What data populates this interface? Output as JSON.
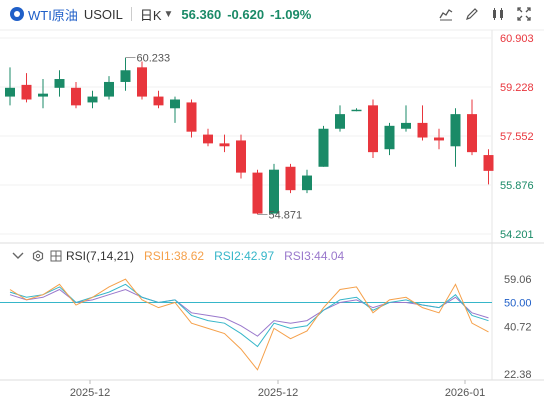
{
  "header": {
    "name": "WTI原油",
    "code": "USOIL",
    "period": "日K",
    "price": "56.360",
    "change": "-0.620",
    "change_pct": "-1.09%",
    "tools": [
      "indicator-icon",
      "draw-icon",
      "compare-icon",
      "fullscreen-icon"
    ]
  },
  "main_axis": {
    "labels": [
      "60.903",
      "59.228",
      "57.552",
      "55.876",
      "54.201"
    ],
    "values": [
      60.903,
      59.228,
      57.552,
      55.876,
      54.201
    ]
  },
  "annotations": {
    "high": "60.233",
    "low": "54.871"
  },
  "rsi": {
    "name": "RSI(7,14,21)",
    "rsi1": "RSI1:38.62",
    "rsi2": "RSI2:42.97",
    "rsi3": "RSI3:44.04",
    "axis": [
      "59.06",
      "50.00",
      "40.72",
      "22.38"
    ]
  },
  "x_axis": {
    "labels": [
      "2025-12",
      "2025-12",
      "2026-01"
    ]
  },
  "colors": {
    "up": "#1a8a67",
    "down": "#e8363d",
    "rsi1": "#f5a04a",
    "rsi2": "#36b6c9",
    "rsi3": "#9a78cc",
    "level": "#36b6c9"
  },
  "chart_data": {
    "type": "candlestick",
    "candles": [
      {
        "o": 58.9,
        "h": 59.9,
        "l": 58.6,
        "c": 59.2
      },
      {
        "o": 59.3,
        "h": 59.7,
        "l": 58.7,
        "c": 58.8
      },
      {
        "o": 58.9,
        "h": 59.5,
        "l": 58.5,
        "c": 59.0
      },
      {
        "o": 59.2,
        "h": 59.8,
        "l": 58.9,
        "c": 59.5
      },
      {
        "o": 59.2,
        "h": 59.4,
        "l": 58.5,
        "c": 58.6
      },
      {
        "o": 58.7,
        "h": 59.1,
        "l": 58.5,
        "c": 58.9
      },
      {
        "o": 58.9,
        "h": 59.6,
        "l": 58.8,
        "c": 59.4
      },
      {
        "o": 59.4,
        "h": 60.233,
        "l": 59.1,
        "c": 59.8
      },
      {
        "o": 59.9,
        "h": 60.1,
        "l": 58.8,
        "c": 58.9
      },
      {
        "o": 58.9,
        "h": 59.1,
        "l": 58.5,
        "c": 58.6
      },
      {
        "o": 58.5,
        "h": 58.9,
        "l": 58.0,
        "c": 58.8
      },
      {
        "o": 58.7,
        "h": 58.8,
        "l": 57.5,
        "c": 57.7
      },
      {
        "o": 57.6,
        "h": 57.8,
        "l": 57.2,
        "c": 57.3
      },
      {
        "o": 57.3,
        "h": 57.6,
        "l": 57.0,
        "c": 57.2
      },
      {
        "o": 57.4,
        "h": 57.6,
        "l": 56.1,
        "c": 56.3
      },
      {
        "o": 56.3,
        "h": 56.4,
        "l": 54.871,
        "c": 54.9
      },
      {
        "o": 54.9,
        "h": 56.6,
        "l": 54.9,
        "c": 56.4
      },
      {
        "o": 56.5,
        "h": 56.6,
        "l": 55.6,
        "c": 55.7
      },
      {
        "o": 55.7,
        "h": 56.4,
        "l": 55.6,
        "c": 56.2
      },
      {
        "o": 56.5,
        "h": 57.9,
        "l": 56.5,
        "c": 57.8
      },
      {
        "o": 57.8,
        "h": 58.6,
        "l": 57.7,
        "c": 58.3
      },
      {
        "o": 58.4,
        "h": 58.5,
        "l": 58.4,
        "c": 58.45
      },
      {
        "o": 58.6,
        "h": 58.8,
        "l": 56.8,
        "c": 57.0
      },
      {
        "o": 57.1,
        "h": 58.0,
        "l": 56.9,
        "c": 57.9
      },
      {
        "o": 57.8,
        "h": 58.6,
        "l": 57.7,
        "c": 58.0
      },
      {
        "o": 58.0,
        "h": 58.6,
        "l": 57.4,
        "c": 57.5
      },
      {
        "o": 57.5,
        "h": 57.8,
        "l": 57.1,
        "c": 57.4
      },
      {
        "o": 57.2,
        "h": 58.5,
        "l": 56.5,
        "c": 58.3
      },
      {
        "o": 58.3,
        "h": 58.8,
        "l": 56.9,
        "c": 57.0
      },
      {
        "o": 56.9,
        "h": 57.1,
        "l": 55.9,
        "c": 56.36
      }
    ],
    "rsi_series": {
      "rsi1": [
        55,
        51,
        53,
        57,
        49,
        52,
        56,
        59,
        51,
        48,
        50,
        42,
        40,
        38,
        32,
        24,
        40,
        36,
        39,
        48,
        55,
        56,
        46,
        51,
        52,
        48,
        46,
        57,
        42,
        38.62
      ],
      "rsi2": [
        54,
        52,
        53,
        56,
        50,
        52,
        54,
        57,
        52,
        50,
        51,
        45,
        43,
        42,
        38,
        33,
        42,
        40,
        41,
        47,
        51,
        52,
        47,
        50,
        51,
        49,
        48,
        53,
        45,
        42.97
      ],
      "rsi3": [
        53,
        51,
        52,
        55,
        50,
        51,
        53,
        55,
        52,
        50,
        51,
        46,
        45,
        44,
        41,
        37,
        43,
        42,
        43,
        47,
        50,
        51,
        48,
        50,
        50,
        49,
        48,
        52,
        46,
        44.04
      ]
    },
    "rsi_ylim": [
      22.38,
      59.06
    ]
  }
}
